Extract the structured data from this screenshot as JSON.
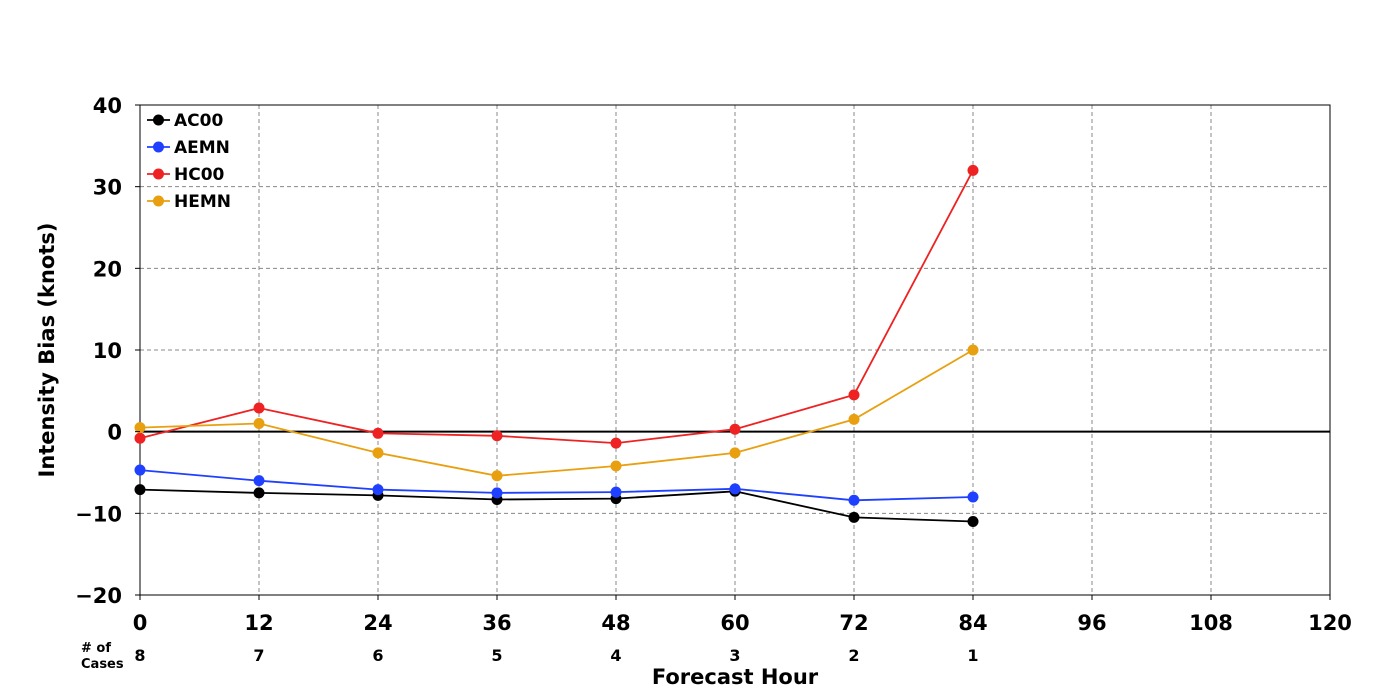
{
  "chart_data": {
    "type": "line",
    "xlabel": "Forecast Hour",
    "ylabel": "Intensity Bias (knots)",
    "xlim": [
      0,
      120
    ],
    "ylim": [
      -20,
      40
    ],
    "x_ticks": [
      0,
      12,
      24,
      36,
      48,
      60,
      72,
      84,
      96,
      108,
      120
    ],
    "y_ticks": [
      40,
      30,
      20,
      10,
      0,
      -10,
      -20
    ],
    "y_tick_labels": [
      "40",
      "30",
      "20",
      "10",
      "0",
      "−10",
      "−20"
    ],
    "grid": true,
    "zero_line": true,
    "legend_position": "top-left",
    "x": [
      0,
      12,
      24,
      36,
      48,
      60,
      72,
      84
    ],
    "series": [
      {
        "name": "AC00",
        "color": "#000000",
        "values": [
          -7.1,
          -7.5,
          -7.8,
          -8.3,
          -8.2,
          -7.3,
          -10.5,
          -11.0
        ]
      },
      {
        "name": "AEMN",
        "color": "#2040ff",
        "values": [
          -4.7,
          -6.0,
          -7.1,
          -7.5,
          -7.4,
          -7.0,
          -8.4,
          -8.0
        ]
      },
      {
        "name": "HC00",
        "color": "#ee2222",
        "values": [
          -0.8,
          2.9,
          -0.2,
          -0.5,
          -1.4,
          0.3,
          4.5,
          32.0
        ]
      },
      {
        "name": "HEMN",
        "color": "#e8a010",
        "values": [
          0.5,
          1.0,
          -2.6,
          -5.4,
          -4.2,
          -2.6,
          1.5,
          10.0
        ]
      }
    ],
    "cases_label": [
      "# of",
      "Cases"
    ],
    "cases": [
      "8",
      "7",
      "6",
      "5",
      "4",
      "3",
      "2",
      "1"
    ]
  }
}
